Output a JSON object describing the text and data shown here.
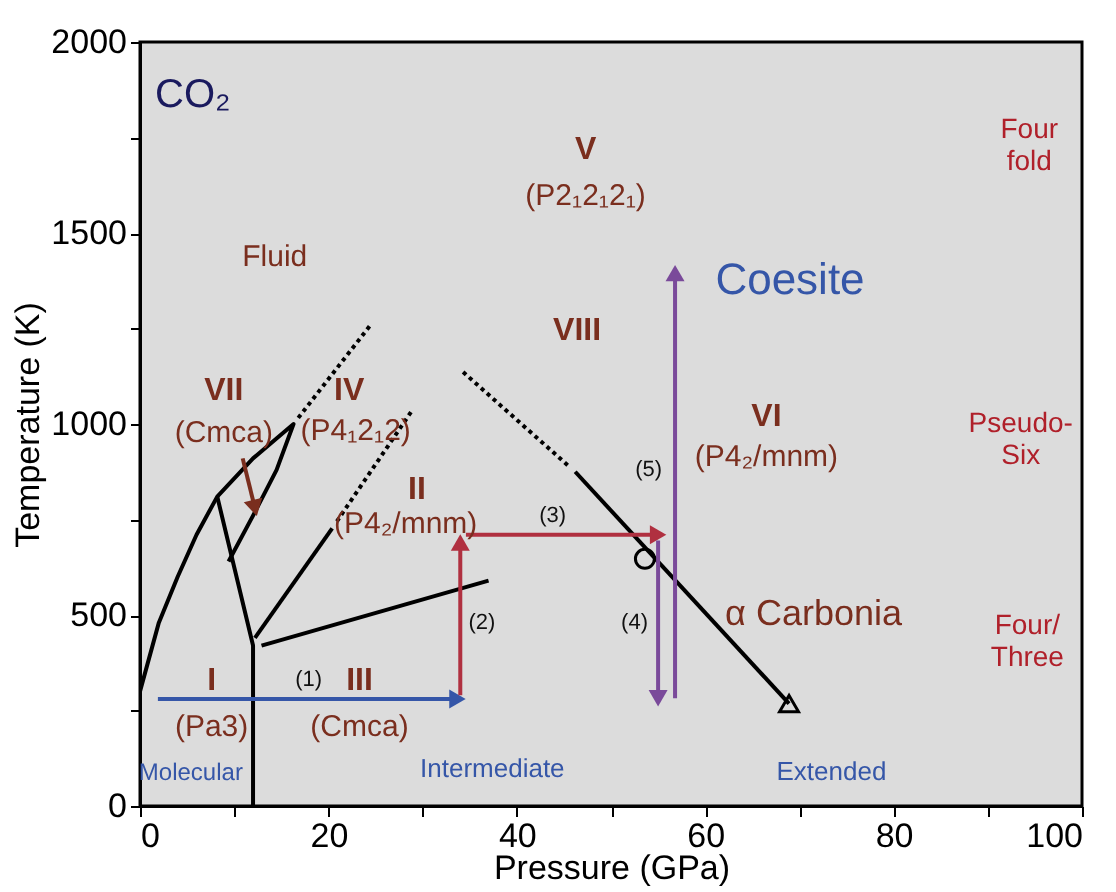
{
  "chart_data": {
    "type": "line",
    "xlabel": "Pressure (GPa)",
    "ylabel": "Temperature (K)",
    "xlim": [
      0,
      100
    ],
    "ylim": [
      0,
      2000
    ],
    "xticks": [
      0,
      {
        "value": 10,
        "label": null
      },
      20,
      {
        "value": 30,
        "label": null
      },
      40,
      {
        "value": 50,
        "label": null
      },
      60,
      {
        "value": 70,
        "label": null
      },
      80,
      {
        "value": 90,
        "label": null
      },
      100
    ],
    "yticks": [
      0,
      {
        "value": 250,
        "label": null
      },
      500,
      {
        "value": 750,
        "label": null
      },
      1000,
      {
        "value": 1250,
        "label": null
      },
      1500,
      {
        "value": 1750,
        "label": null
      },
      2000
    ],
    "grid": false,
    "series": [
      {
        "color": "#000000",
        "line_style": "solid",
        "x": [
          0,
          2,
          4,
          6,
          8.2,
          12,
          16.3,
          14.5,
          12,
          9.4
        ],
        "values": [
          300,
          480,
          600,
          710,
          810,
          910,
          1000,
          880,
          760,
          640
        ]
      },
      {
        "color": "#000000",
        "line_style": "solid",
        "x": [
          8.2,
          12,
          12
        ],
        "values": [
          810,
          420,
          0
        ]
      },
      {
        "color": "#000000",
        "line_style": "dotted",
        "x": [
          16.8,
          24.5
        ],
        "values": [
          1016,
          1260
        ]
      },
      {
        "color": "#000000",
        "line_style": "solid",
        "x": [
          12.2,
          20.4
        ],
        "values": [
          440,
          727
        ]
      },
      {
        "color": "#000000",
        "line_style": "dotted",
        "x": [
          20.9,
          28.9
        ],
        "values": [
          745,
          1036
        ]
      },
      {
        "color": "#000000",
        "line_style": "solid",
        "x": [
          12.9,
          37
        ],
        "values": [
          420,
          590
        ]
      },
      {
        "color": "#000000",
        "line_style": "dotted",
        "x": [
          34.3,
          45.5
        ],
        "values": [
          1136,
          890
        ]
      },
      {
        "color": "#000000",
        "line_style": "solid",
        "x": [
          46.2,
          68.9
        ],
        "values": [
          875,
          268
        ]
      },
      {
        "type": "scatter",
        "color": "#000000",
        "marker": "circle",
        "x": [
          53.6
        ],
        "values": [
          647
        ]
      },
      {
        "type": "scatter",
        "color": "#000000",
        "marker": "triangle",
        "x": [
          68.9
        ],
        "values": [
          268
        ]
      },
      {
        "color": "#3556a8",
        "line_style": "solid",
        "marker": "triangle",
        "x": [
          1.9,
          33.7
        ],
        "values": [
          280,
          280
        ]
      },
      {
        "color": "#b03040",
        "line_style": "solid",
        "marker": "triangle",
        "x": [
          34,
          34
        ],
        "values": [
          290,
          690
        ]
      },
      {
        "color": "#b03040",
        "line_style": "solid",
        "marker": "triangle",
        "x": [
          34.6,
          55
        ],
        "values": [
          710,
          710
        ]
      },
      {
        "color": "#7a4a9a",
        "line_style": "solid",
        "marker": "triangle",
        "x": [
          55,
          55
        ],
        "values": [
          695,
          282
        ]
      },
      {
        "color": "#7a4a9a",
        "line_style": "solid",
        "marker": "triangle",
        "x": [
          56.8,
          56.8
        ],
        "values": [
          282,
          1395
        ]
      },
      {
        "color": "#7a2e1e",
        "line_style": "solid",
        "marker": "triangle",
        "x": [
          10.9,
          12.2
        ],
        "values": [
          910,
          780
        ]
      }
    ],
    "annotations": [
      "CO₂",
      "Fluid",
      "V",
      "(P2₁2₁2₁)",
      "Coesite",
      "VIII",
      "Four\nfold",
      "VII",
      "(Cmca)",
      "IV",
      "(P4₁2₁2)",
      "II",
      "(P4₂/mnm)",
      "VI",
      "(P4₂/mnm)",
      "Pseudo-\nSix",
      "(5)",
      "(4)",
      "(3)",
      "(2)",
      "(1)",
      "α Carbonia",
      "Four/\nThree",
      "I",
      "(Pa3)",
      "III",
      "(Cmca)",
      "Molecular",
      "Intermediate",
      "Extended"
    ]
  }
}
